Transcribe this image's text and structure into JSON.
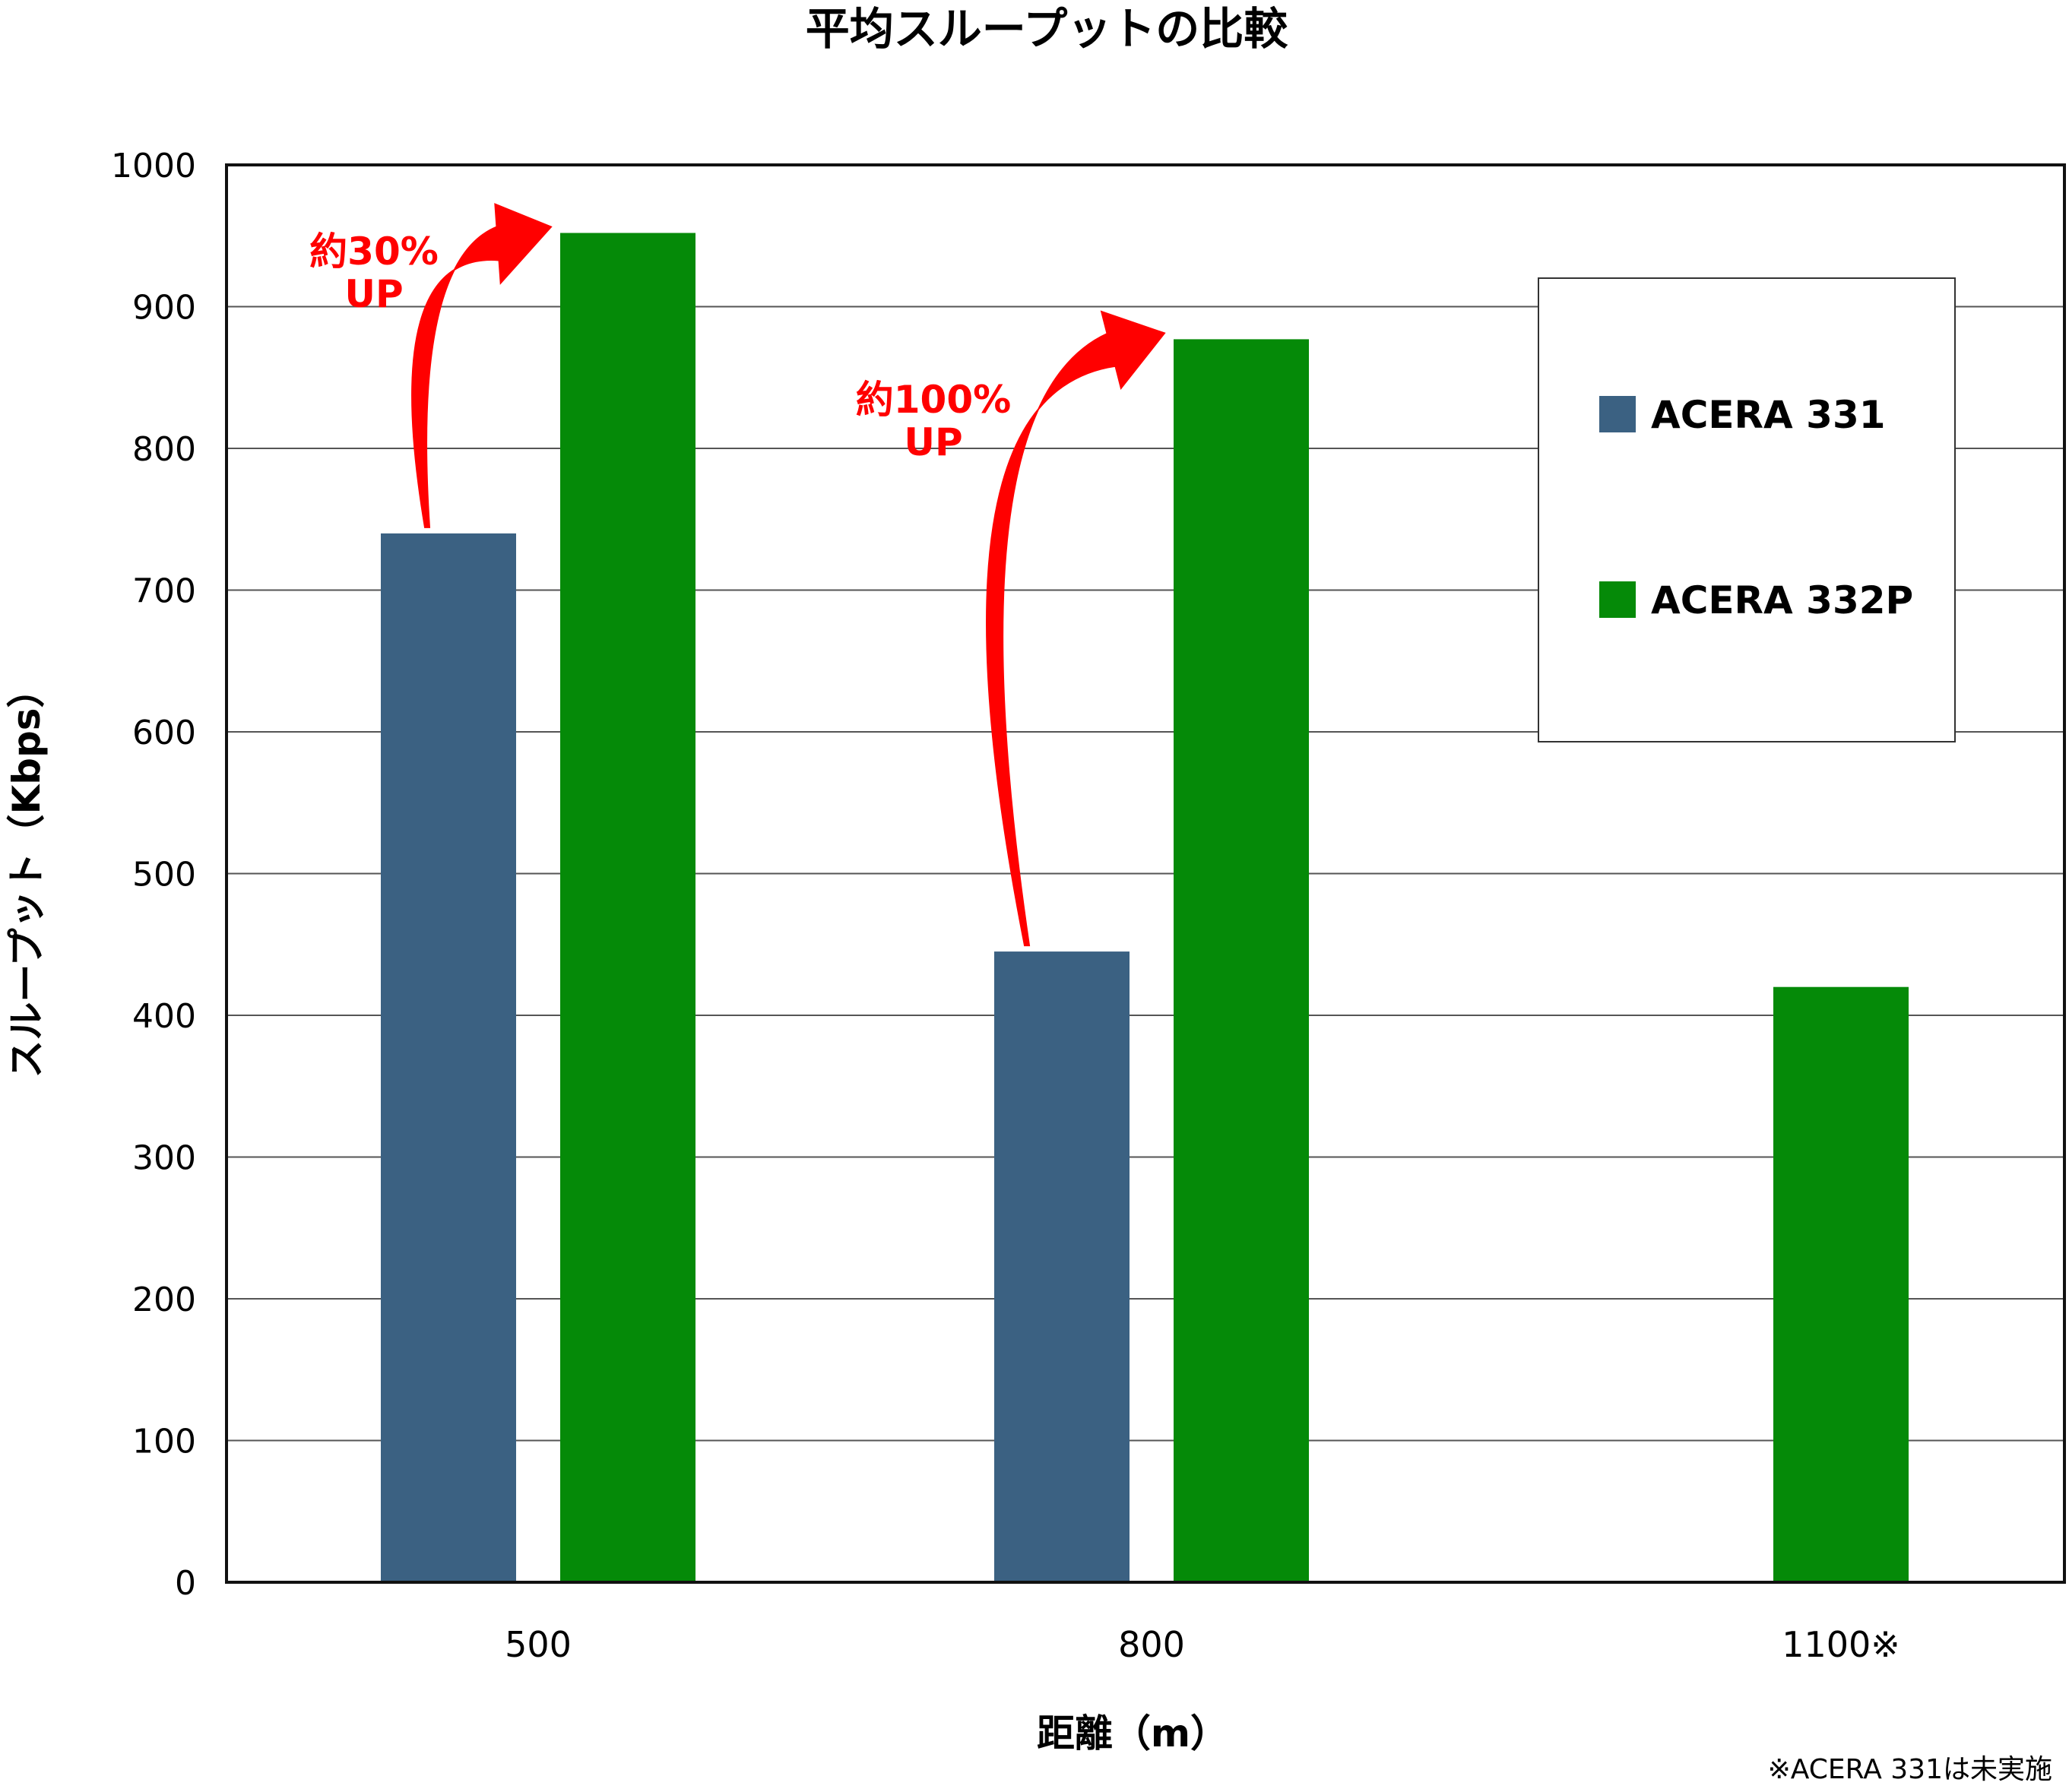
{
  "chart_data": {
    "type": "bar",
    "title": "平均スループットの比較",
    "xlabel": "距離（m）",
    "ylabel": "スループット（Kbps）",
    "categories": [
      "500",
      "800",
      "1100※"
    ],
    "ylim": [
      0,
      1000
    ],
    "yticks": [
      0,
      100,
      200,
      300,
      400,
      500,
      600,
      700,
      800,
      900,
      1000
    ],
    "grid": true,
    "legend_position": "top-right",
    "series": [
      {
        "name": "ACERA 331",
        "color": "#3b6182",
        "values": [
          740,
          445,
          null
        ]
      },
      {
        "name": "ACERA 332P",
        "color": "#058a08",
        "values": [
          952,
          877,
          420
        ]
      }
    ],
    "annotations": [
      {
        "line1": "約30%",
        "line2": "UP",
        "category": "500",
        "color": "#ff0000"
      },
      {
        "line1": "約100%",
        "line2": "UP",
        "category": "800",
        "color": "#ff0000"
      }
    ],
    "footnote": "※ACERA 331は未実施"
  }
}
